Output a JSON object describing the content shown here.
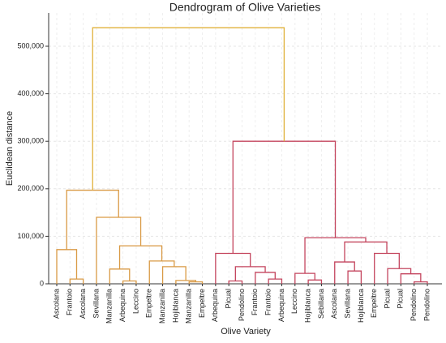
{
  "chart_data": {
    "type": "dendrogram",
    "title": "Dendrogram of Olive Varieties",
    "x_label": "Olive Variety",
    "y_label": "Euclidean distance",
    "categories": [
      "Ascolana",
      "Frantoio",
      "Ascolana",
      "Sevillana",
      "Manzanilla",
      "Arbequina",
      "Leccino",
      "Empeltre",
      "Manzanilla",
      "Hojiblanca",
      "Manzanilla",
      "Empeltre",
      "Arbequina",
      "Picual",
      "Pendolino",
      "Frantoio",
      "Frantoio",
      "Arbequina",
      "Leccino",
      "Hojiblanca",
      "Sebillana",
      "Ascolana",
      "Sevillana",
      "Hojiblanca",
      "Empeltre",
      "Picual",
      "Picual",
      "Pendolino",
      "Pendolino"
    ],
    "links": [
      {
        "children": [
          1,
          2
        ],
        "height": 10000,
        "color": "#d99a45"
      },
      {
        "children": [
          0,
          29
        ],
        "height": 72000,
        "color": "#d99a45"
      },
      {
        "children": [
          5,
          6
        ],
        "height": 6000,
        "color": "#d99a45"
      },
      {
        "children": [
          4,
          31
        ],
        "height": 31000,
        "color": "#d99a45"
      },
      {
        "children": [
          10,
          11
        ],
        "height": 4000,
        "color": "#d99a45"
      },
      {
        "children": [
          9,
          33
        ],
        "height": 7000,
        "color": "#d99a45"
      },
      {
        "children": [
          8,
          34
        ],
        "height": 36000,
        "color": "#d99a45"
      },
      {
        "children": [
          7,
          35
        ],
        "height": 48000,
        "color": "#d99a45"
      },
      {
        "children": [
          32,
          36
        ],
        "height": 80000,
        "color": "#d99a45"
      },
      {
        "children": [
          3,
          37
        ],
        "height": 140000,
        "color": "#d99a45"
      },
      {
        "children": [
          30,
          38
        ],
        "height": 197000,
        "color": "#d99a45"
      },
      {
        "children": [
          13,
          14
        ],
        "height": 6000,
        "color": "#c4455e"
      },
      {
        "children": [
          16,
          17
        ],
        "height": 10000,
        "color": "#c4455e"
      },
      {
        "children": [
          15,
          41
        ],
        "height": 24000,
        "color": "#c4455e"
      },
      {
        "children": [
          40,
          42
        ],
        "height": 36000,
        "color": "#c4455e"
      },
      {
        "children": [
          12,
          43
        ],
        "height": 64000,
        "color": "#c4455e"
      },
      {
        "children": [
          19,
          20
        ],
        "height": 8000,
        "color": "#c4455e"
      },
      {
        "children": [
          18,
          45
        ],
        "height": 22000,
        "color": "#c4455e"
      },
      {
        "children": [
          22,
          23
        ],
        "height": 27000,
        "color": "#c4455e"
      },
      {
        "children": [
          21,
          47
        ],
        "height": 46000,
        "color": "#c4455e"
      },
      {
        "children": [
          27,
          28
        ],
        "height": 4000,
        "color": "#c4455e"
      },
      {
        "children": [
          26,
          49
        ],
        "height": 21000,
        "color": "#c4455e"
      },
      {
        "children": [
          25,
          50
        ],
        "height": 32000,
        "color": "#c4455e"
      },
      {
        "children": [
          24,
          51
        ],
        "height": 64000,
        "color": "#c4455e"
      },
      {
        "children": [
          48,
          52
        ],
        "height": 88000,
        "color": "#c4455e"
      },
      {
        "children": [
          46,
          53
        ],
        "height": 97000,
        "color": "#c4455e"
      },
      {
        "children": [
          44,
          54
        ],
        "height": 300000,
        "color": "#c4455e"
      },
      {
        "children": [
          39,
          55
        ],
        "height": 539000,
        "color": "#e0b13a"
      }
    ],
    "ylim": [
      0,
      570000
    ],
    "yticks": [
      0,
      {
        "value": 100000,
        "label": "100,000"
      },
      {
        "value": 200000,
        "label": "200,000"
      },
      {
        "value": 300000,
        "label": "300,000"
      },
      {
        "value": 400000,
        "label": "400,000"
      },
      {
        "value": 500000,
        "label": "500,000"
      }
    ],
    "grid": true
  }
}
